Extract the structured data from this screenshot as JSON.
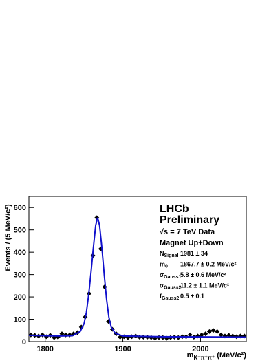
{
  "chart_data": {
    "type": "scatter",
    "y_label": "Events / (5 MeV/c²)",
    "x_label": {
      "symbol": "m",
      "sub": "K⁻π⁺π⁺",
      "unit": " (MeV/c²)"
    },
    "xlim": [
      1779,
      2059
    ],
    "ylim": [
      0,
      650
    ],
    "xticks": [
      1800,
      1900,
      2000
    ],
    "yticks": [
      0,
      100,
      200,
      300,
      400,
      500,
      600
    ],
    "series": [
      {
        "style": "marker",
        "color": "#000000",
        "x": [
          1781.5,
          1786.5,
          1791.5,
          1796.5,
          1801.5,
          1806.5,
          1811.5,
          1816.5,
          1821.5,
          1826.5,
          1831.5,
          1836.5,
          1841.5,
          1846.5,
          1851.5,
          1856.5,
          1861.5,
          1866.5,
          1871.5,
          1876.5,
          1881.5,
          1886.5,
          1891.5,
          1896.5,
          1901.5,
          1906.5,
          1911.5,
          1916.5,
          1921.5,
          1926.5,
          1931.5,
          1936.5,
          1941.5,
          1946.5,
          1951.5,
          1956.5,
          1961.5,
          1966.5,
          1971.5,
          1976.5,
          1981.5,
          1986.5,
          1991.5,
          1996.5,
          2001.5,
          2006.5,
          2011.5,
          2016.5,
          2021.5,
          2026.5,
          2031.5,
          2036.5,
          2041.5,
          2046.5,
          2051.5,
          2056.5
        ],
        "values": [
          30,
          28,
          25,
          30,
          22,
          28,
          18,
          20,
          35,
          30,
          30,
          35,
          40,
          65,
          110,
          215,
          385,
          555,
          415,
          245,
          90,
          55,
          35,
          20,
          22,
          18,
          22,
          25,
          20,
          20,
          20,
          18,
          15,
          18,
          18,
          15,
          18,
          20,
          18,
          22,
          22,
          30,
          20,
          25,
          30,
          35,
          45,
          50,
          45,
          30,
          25,
          28,
          25,
          22,
          25,
          25
        ]
      },
      {
        "style": "line",
        "color": "#1010cc",
        "x": [
          1779,
          1800,
          1820,
          1835,
          1845,
          1850,
          1853,
          1856,
          1859,
          1862,
          1865,
          1867.5,
          1870,
          1873,
          1876,
          1879,
          1882,
          1885,
          1890,
          1900,
          1950,
          2000,
          2059
        ],
        "values": [
          28,
          26,
          25,
          26,
          45,
          80,
          130,
          210,
          310,
          420,
          520,
          555,
          520,
          420,
          300,
          190,
          110,
          65,
          38,
          25,
          22,
          21,
          20
        ]
      }
    ],
    "annotations": {
      "experiment": "LHCb",
      "status": "Preliminary",
      "energy": "√s = 7 TeV Data",
      "magnet": "Magnet Up+Down",
      "params": [
        {
          "symbol": "N",
          "sub": "Signal",
          "value": "1981 ± 34"
        },
        {
          "symbol": "m",
          "sub": "0",
          "value": "1867.7 ± 0.2 MeV/c²"
        },
        {
          "symbol": "σ",
          "sub": "Gauss1",
          "value": "5.8 ± 0.6 MeV/c²"
        },
        {
          "symbol": "σ",
          "sub": "Gauss2",
          "value": "11.2 ± 1.1 MeV/c²"
        },
        {
          "symbol": "f",
          "sub": "Gauss2",
          "value": "0.5 ± 0.1"
        }
      ]
    }
  }
}
